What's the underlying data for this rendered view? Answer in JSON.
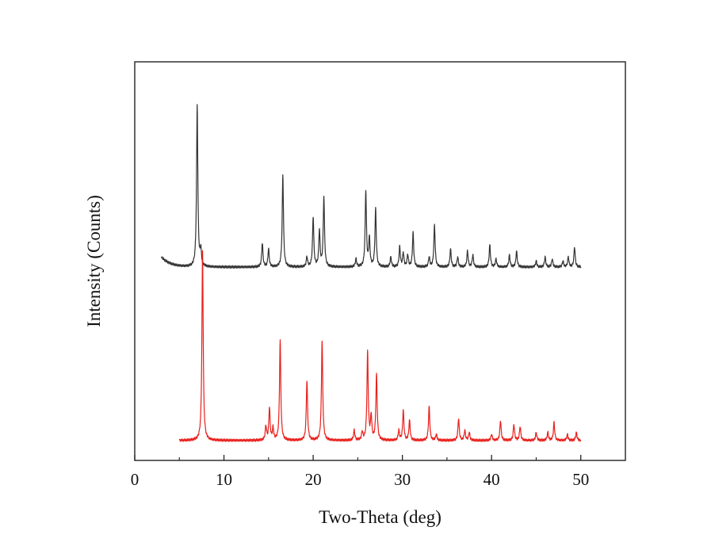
{
  "chart_data": {
    "type": "line",
    "title": "",
    "xlabel": "Two-Theta (deg)",
    "ylabel": "Intensity (Counts)",
    "xlim": [
      0,
      55
    ],
    "ylim": [
      0,
      2.0
    ],
    "y_tick_labels_shown": false,
    "grid": false,
    "legend": "none",
    "x_ticks": [
      0,
      10,
      20,
      30,
      40,
      50
    ],
    "x_tick_labels": [
      "0",
      "10",
      "20",
      "30",
      "40",
      "50"
    ],
    "series": [
      {
        "color": "#333333",
        "baseline": 0.97,
        "x_range": [
          3.0,
          50.0
        ],
        "low_angle_rise": 0.05,
        "peaks": [
          {
            "x": 7.0,
            "y": 0.81
          },
          {
            "x": 7.4,
            "y": 0.08
          },
          {
            "x": 14.3,
            "y": 0.12
          },
          {
            "x": 15.0,
            "y": 0.09
          },
          {
            "x": 16.6,
            "y": 0.46
          },
          {
            "x": 19.3,
            "y": 0.05
          },
          {
            "x": 20.0,
            "y": 0.25
          },
          {
            "x": 20.7,
            "y": 0.18
          },
          {
            "x": 21.2,
            "y": 0.35
          },
          {
            "x": 24.8,
            "y": 0.04
          },
          {
            "x": 25.9,
            "y": 0.38
          },
          {
            "x": 26.3,
            "y": 0.14
          },
          {
            "x": 27.0,
            "y": 0.29
          },
          {
            "x": 28.7,
            "y": 0.05
          },
          {
            "x": 29.7,
            "y": 0.1
          },
          {
            "x": 30.1,
            "y": 0.07
          },
          {
            "x": 30.6,
            "y": 0.06
          },
          {
            "x": 31.2,
            "y": 0.17
          },
          {
            "x": 33.0,
            "y": 0.05
          },
          {
            "x": 33.6,
            "y": 0.21
          },
          {
            "x": 35.4,
            "y": 0.09
          },
          {
            "x": 36.2,
            "y": 0.05
          },
          {
            "x": 37.3,
            "y": 0.08
          },
          {
            "x": 37.9,
            "y": 0.06
          },
          {
            "x": 39.8,
            "y": 0.11
          },
          {
            "x": 40.5,
            "y": 0.04
          },
          {
            "x": 42.0,
            "y": 0.06
          },
          {
            "x": 42.8,
            "y": 0.08
          },
          {
            "x": 45.0,
            "y": 0.03
          },
          {
            "x": 46.0,
            "y": 0.05
          },
          {
            "x": 46.8,
            "y": 0.04
          },
          {
            "x": 48.0,
            "y": 0.03
          },
          {
            "x": 48.6,
            "y": 0.05
          },
          {
            "x": 49.3,
            "y": 0.1
          }
        ]
      },
      {
        "color": "#e8201c",
        "baseline": 0.1,
        "x_range": [
          5.0,
          50.0
        ],
        "low_angle_rise": 0,
        "peaks": [
          {
            "x": 7.6,
            "y": 0.95
          },
          {
            "x": 14.7,
            "y": 0.07
          },
          {
            "x": 15.1,
            "y": 0.16
          },
          {
            "x": 15.5,
            "y": 0.06
          },
          {
            "x": 16.3,
            "y": 0.5
          },
          {
            "x": 19.3,
            "y": 0.3
          },
          {
            "x": 21.0,
            "y": 0.5
          },
          {
            "x": 24.6,
            "y": 0.05
          },
          {
            "x": 25.5,
            "y": 0.04
          },
          {
            "x": 26.1,
            "y": 0.44
          },
          {
            "x": 26.5,
            "y": 0.12
          },
          {
            "x": 27.1,
            "y": 0.33
          },
          {
            "x": 29.6,
            "y": 0.05
          },
          {
            "x": 30.1,
            "y": 0.15
          },
          {
            "x": 30.8,
            "y": 0.1
          },
          {
            "x": 33.0,
            "y": 0.17
          },
          {
            "x": 33.8,
            "y": 0.03
          },
          {
            "x": 36.3,
            "y": 0.11
          },
          {
            "x": 37.0,
            "y": 0.05
          },
          {
            "x": 37.5,
            "y": 0.04
          },
          {
            "x": 40.0,
            "y": 0.03
          },
          {
            "x": 41.0,
            "y": 0.1
          },
          {
            "x": 42.5,
            "y": 0.08
          },
          {
            "x": 43.2,
            "y": 0.07
          },
          {
            "x": 45.0,
            "y": 0.04
          },
          {
            "x": 46.3,
            "y": 0.04
          },
          {
            "x": 47.0,
            "y": 0.09
          },
          {
            "x": 48.5,
            "y": 0.03
          },
          {
            "x": 49.5,
            "y": 0.04
          }
        ]
      }
    ]
  }
}
